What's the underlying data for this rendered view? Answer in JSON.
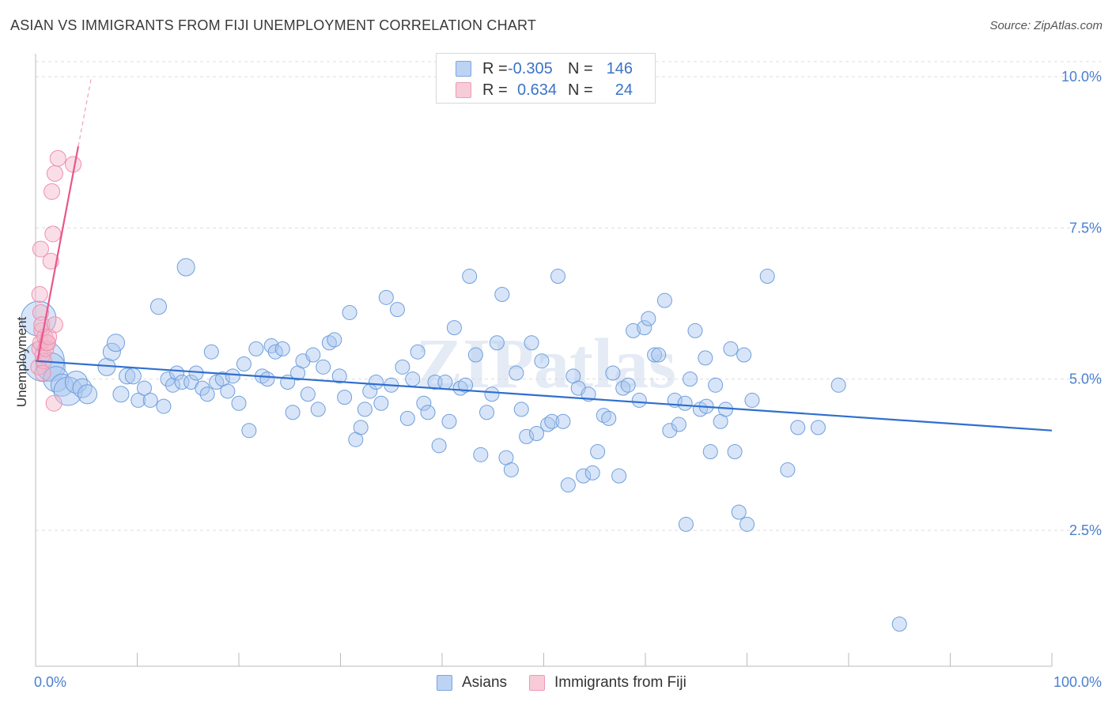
{
  "header": {
    "title": "ASIAN VS IMMIGRANTS FROM FIJI UNEMPLOYMENT CORRELATION CHART",
    "source": "Source: ZipAtlas.com"
  },
  "legend": {
    "rows": [
      {
        "r_label": "R =",
        "r_value": "-0.305",
        "n_label": "N =",
        "n_value": "146",
        "color": "#a9c6f0"
      },
      {
        "r_label": "R =",
        "r_value": "0.634",
        "n_label": "N =",
        "n_value": "24",
        "color": "#f4b6c9"
      }
    ]
  },
  "bottom_legend": {
    "items": [
      {
        "label": "Asians",
        "color": "#a9c6f0"
      },
      {
        "label": "Immigrants from Fiji",
        "color": "#f4b6c9"
      }
    ]
  },
  "chart_data": {
    "type": "scatter",
    "title": "ASIAN VS IMMIGRANTS FROM FIJI UNEMPLOYMENT CORRELATION CHART",
    "ylabel": "Unemployment",
    "xlabel": "",
    "xlim": [
      0,
      100
    ],
    "ylim": [
      0,
      10.5
    ],
    "x_tick_labels": [
      "0.0%",
      "100.0%"
    ],
    "y_ticks": [
      {
        "value": 2.5,
        "label": "2.5%"
      },
      {
        "value": 5.0,
        "label": "5.0%"
      },
      {
        "value": 7.5,
        "label": "7.5%"
      },
      {
        "value": 10.0,
        "label": "10.0%"
      }
    ],
    "grid": "horizontal-dashed",
    "legend_position": "top-center",
    "watermark": "ZIPatlas",
    "colors": {
      "asians": "#6f9fdc",
      "fiji": "#f08aaa",
      "asians_line": "#2f6fcf",
      "fiji_line": "#e8578a"
    },
    "series": [
      {
        "name": "Asians",
        "trend": {
          "x0": 0,
          "y0": 5.3,
          "x1": 100,
          "y1": 4.15
        },
        "points": [
          [
            0.3,
            6.0,
            22
          ],
          [
            0.8,
            5.3,
            26
          ],
          [
            1.5,
            5.2,
            18
          ],
          [
            2.0,
            5.0,
            16
          ],
          [
            2.6,
            4.9,
            14
          ],
          [
            3.2,
            4.8,
            18
          ],
          [
            4.0,
            4.95,
            14
          ],
          [
            4.6,
            4.85,
            12
          ],
          [
            5.1,
            4.75,
            12
          ],
          [
            7.0,
            5.2,
            11
          ],
          [
            7.5,
            5.45,
            11
          ],
          [
            7.9,
            5.6,
            11
          ],
          [
            8.4,
            4.75,
            10
          ],
          [
            9.0,
            5.05,
            10
          ],
          [
            9.6,
            5.05,
            10
          ],
          [
            10.1,
            4.65,
            9
          ],
          [
            10.7,
            4.85,
            9
          ],
          [
            11.3,
            4.65,
            9
          ],
          [
            12.1,
            6.2,
            10
          ],
          [
            12.6,
            4.55,
            9
          ],
          [
            13.0,
            5.0,
            9
          ],
          [
            13.5,
            4.9,
            9
          ],
          [
            13.9,
            5.1,
            9
          ],
          [
            14.4,
            4.95,
            9
          ],
          [
            14.8,
            6.85,
            11
          ],
          [
            15.3,
            4.95,
            9
          ],
          [
            15.8,
            5.1,
            9
          ],
          [
            16.4,
            4.85,
            9
          ],
          [
            16.9,
            4.75,
            9
          ],
          [
            17.3,
            5.45,
            9
          ],
          [
            17.8,
            4.95,
            9
          ],
          [
            18.4,
            5.0,
            9
          ],
          [
            18.9,
            4.8,
            9
          ],
          [
            19.4,
            5.05,
            9
          ],
          [
            20.0,
            4.6,
            9
          ],
          [
            20.5,
            5.25,
            9
          ],
          [
            21.0,
            4.15,
            9
          ],
          [
            21.7,
            5.5,
            9
          ],
          [
            22.3,
            5.05,
            9
          ],
          [
            22.8,
            5.0,
            9
          ],
          [
            23.2,
            5.55,
            9
          ],
          [
            23.6,
            5.45,
            9
          ],
          [
            24.3,
            5.5,
            9
          ],
          [
            24.8,
            4.95,
            9
          ],
          [
            25.3,
            4.45,
            9
          ],
          [
            25.8,
            5.1,
            9
          ],
          [
            26.3,
            5.3,
            9
          ],
          [
            26.8,
            4.75,
            9
          ],
          [
            27.3,
            5.4,
            9
          ],
          [
            27.8,
            4.5,
            9
          ],
          [
            28.3,
            5.2,
            9
          ],
          [
            28.9,
            5.6,
            9
          ],
          [
            29.4,
            5.65,
            9
          ],
          [
            29.9,
            5.05,
            9
          ],
          [
            30.4,
            4.7,
            9
          ],
          [
            30.9,
            6.1,
            9
          ],
          [
            31.5,
            4.0,
            9
          ],
          [
            32.0,
            4.2,
            9
          ],
          [
            32.4,
            4.5,
            9
          ],
          [
            32.9,
            4.8,
            9
          ],
          [
            33.5,
            4.95,
            9
          ],
          [
            34.0,
            4.6,
            9
          ],
          [
            34.5,
            6.35,
            9
          ],
          [
            35.0,
            4.9,
            9
          ],
          [
            35.6,
            6.15,
            9
          ],
          [
            36.1,
            5.2,
            9
          ],
          [
            36.6,
            4.35,
            9
          ],
          [
            37.1,
            5.0,
            9
          ],
          [
            37.6,
            5.45,
            9
          ],
          [
            38.2,
            4.6,
            9
          ],
          [
            38.6,
            4.45,
            9
          ],
          [
            39.3,
            4.95,
            9
          ],
          [
            39.7,
            3.9,
            9
          ],
          [
            40.3,
            4.95,
            9
          ],
          [
            40.7,
            4.3,
            9
          ],
          [
            41.2,
            5.85,
            9
          ],
          [
            41.8,
            4.85,
            9
          ],
          [
            42.3,
            4.9,
            9
          ],
          [
            42.7,
            6.7,
            9
          ],
          [
            43.3,
            5.4,
            9
          ],
          [
            43.8,
            3.75,
            9
          ],
          [
            44.4,
            4.45,
            9
          ],
          [
            44.9,
            4.75,
            9
          ],
          [
            45.4,
            5.6,
            9
          ],
          [
            45.9,
            6.4,
            9
          ],
          [
            46.3,
            3.7,
            9
          ],
          [
            46.8,
            3.5,
            9
          ],
          [
            47.3,
            5.1,
            9
          ],
          [
            47.8,
            4.5,
            9
          ],
          [
            48.3,
            4.05,
            9
          ],
          [
            48.8,
            5.6,
            9
          ],
          [
            49.3,
            4.1,
            9
          ],
          [
            49.8,
            5.3,
            9
          ],
          [
            50.4,
            4.25,
            9
          ],
          [
            50.8,
            4.3,
            9
          ],
          [
            51.4,
            6.7,
            9
          ],
          [
            51.9,
            4.3,
            9
          ],
          [
            52.4,
            3.25,
            9
          ],
          [
            52.9,
            5.05,
            9
          ],
          [
            53.4,
            4.85,
            9
          ],
          [
            53.9,
            3.4,
            9
          ],
          [
            54.4,
            4.75,
            9
          ],
          [
            54.8,
            3.45,
            9
          ],
          [
            55.3,
            3.8,
            9
          ],
          [
            55.9,
            4.4,
            9
          ],
          [
            56.4,
            4.35,
            9
          ],
          [
            56.8,
            5.1,
            9
          ],
          [
            57.4,
            3.4,
            9
          ],
          [
            57.8,
            4.85,
            9
          ],
          [
            58.3,
            4.9,
            9
          ],
          [
            58.8,
            5.8,
            9
          ],
          [
            59.4,
            4.65,
            9
          ],
          [
            59.9,
            5.85,
            9
          ],
          [
            60.3,
            6.0,
            9
          ],
          [
            60.9,
            5.4,
            9
          ],
          [
            61.3,
            5.4,
            9
          ],
          [
            61.9,
            6.3,
            9
          ],
          [
            62.4,
            4.15,
            9
          ],
          [
            62.9,
            4.65,
            9
          ],
          [
            63.3,
            4.25,
            9
          ],
          [
            63.9,
            4.6,
            9
          ],
          [
            64.4,
            5.0,
            9
          ],
          [
            64.9,
            5.8,
            9
          ],
          [
            65.4,
            4.5,
            9
          ],
          [
            65.9,
            5.35,
            9
          ],
          [
            66.4,
            3.8,
            9
          ],
          [
            66.9,
            4.9,
            9
          ],
          [
            67.4,
            4.3,
            9
          ],
          [
            67.9,
            4.5,
            9
          ],
          [
            68.4,
            5.5,
            9
          ],
          [
            68.8,
            3.8,
            9
          ],
          [
            69.2,
            2.8,
            9
          ],
          [
            69.7,
            5.4,
            9
          ],
          [
            70.0,
            2.6,
            9
          ],
          [
            72.0,
            6.7,
            9
          ],
          [
            74.0,
            3.5,
            9
          ],
          [
            75.0,
            4.2,
            9
          ],
          [
            77.0,
            4.2,
            9
          ],
          [
            79.0,
            4.9,
            9
          ],
          [
            85.0,
            0.95,
            9
          ],
          [
            64.0,
            2.6,
            9
          ],
          [
            70.5,
            4.65,
            9
          ],
          [
            66.0,
            4.55,
            9
          ]
        ]
      },
      {
        "name": "Immigrants from Fiji",
        "trend": {
          "x0": 0.2,
          "y0": 5.3,
          "x1": 4.2,
          "y1": 8.85
        },
        "trend_dashed_to": {
          "x": 5.5,
          "y": 10.0
        },
        "points": [
          [
            0.3,
            5.2,
            10
          ],
          [
            0.4,
            5.5,
            10
          ],
          [
            0.5,
            5.6,
            10
          ],
          [
            0.6,
            5.8,
            10
          ],
          [
            0.7,
            5.4,
            10
          ],
          [
            0.8,
            5.3,
            10
          ],
          [
            0.9,
            5.7,
            10
          ],
          [
            1.0,
            5.5,
            10
          ],
          [
            1.1,
            5.6,
            10
          ],
          [
            1.2,
            5.6,
            10
          ],
          [
            1.3,
            5.7,
            10
          ],
          [
            0.4,
            6.4,
            10
          ],
          [
            0.5,
            6.1,
            10
          ],
          [
            0.6,
            5.9,
            10
          ],
          [
            0.7,
            5.1,
            10
          ],
          [
            0.5,
            7.15,
            10
          ],
          [
            1.5,
            6.95,
            10
          ],
          [
            1.7,
            7.4,
            10
          ],
          [
            1.6,
            8.1,
            10
          ],
          [
            1.9,
            8.4,
            10
          ],
          [
            2.2,
            8.65,
            10
          ],
          [
            3.7,
            8.55,
            10
          ],
          [
            1.8,
            4.6,
            10
          ],
          [
            1.9,
            5.9,
            10
          ]
        ]
      }
    ]
  }
}
